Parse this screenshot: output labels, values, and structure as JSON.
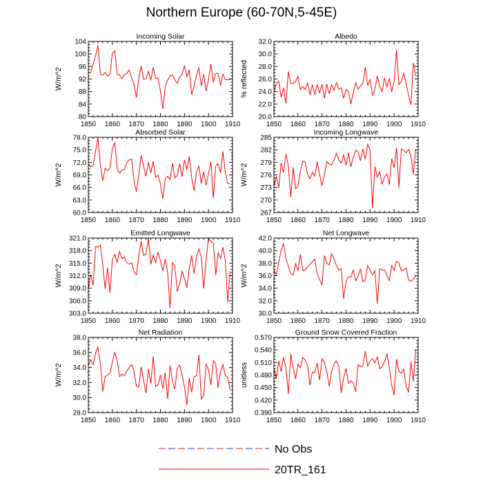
{
  "title": "Northern Europe (60-70N,5-45E)",
  "legend": [
    {
      "label": "No Obs",
      "style": "dashed",
      "colors": [
        "#d22",
        "#33c"
      ]
    },
    {
      "label": "20TR_161",
      "style": "solid",
      "colors": [
        "#e00"
      ]
    }
  ],
  "line_color": "#ff0000",
  "chart_data": [
    {
      "type": "line",
      "title": "Incoming Solar",
      "ylabel": "W/m^2",
      "xlim": [
        1850,
        1910
      ],
      "xticks": [
        1850,
        1860,
        1870,
        1880,
        1890,
        1900,
        1910
      ],
      "ylim": [
        80,
        104
      ],
      "yticks": [
        "80",
        "84",
        "88",
        "92",
        "96",
        "100",
        "104"
      ],
      "x0": 1850,
      "values": [
        94.0,
        94.0,
        96.8,
        99.2,
        102.8,
        93.5,
        93.2,
        94.1,
        92.9,
        93.6,
        100.1,
        101.0,
        93.5,
        93.3,
        92.1,
        93.4,
        93.8,
        94.9,
        92.4,
        90.4,
        86.1,
        92.3,
        96.1,
        91.9,
        92.1,
        94.4,
        91.6,
        95.7,
        92.2,
        92.3,
        88.2,
        82.4,
        89.6,
        91.7,
        92.9,
        93.4,
        91.7,
        90.6,
        92.6,
        93.5,
        96.3,
        92.7,
        94.9,
        87.0,
        89.6,
        93.2,
        95.6,
        89.8,
        93.5,
        88.1,
        91.7,
        96.8,
        90.9,
        93.8,
        93.8,
        89.9,
        93.6,
        91.8,
        91.8,
        91.8
      ]
    },
    {
      "type": "line",
      "title": "Albedo",
      "ylabel": "% reflected",
      "xlim": [
        1850,
        1910
      ],
      "xticks": [
        1850,
        1860,
        1870,
        1880,
        1890,
        1900,
        1910
      ],
      "ylim": [
        20,
        32
      ],
      "yticks": [
        "20.0",
        "22.0",
        "24.0",
        "26.0",
        "28.0",
        "30.0",
        "32.0"
      ],
      "x0": 1850,
      "values": [
        24.0,
        25.2,
        25.7,
        23.1,
        24.6,
        22.1,
        27.2,
        25.3,
        25.3,
        25.6,
        26.4,
        24.3,
        24.8,
        24.3,
        25.4,
        23.5,
        25.1,
        23.5,
        25.1,
        23.8,
        25.2,
        22.9,
        25.2,
        23.6,
        25.1,
        24.2,
        25.4,
        24.4,
        24.6,
        22.9,
        24.3,
        24.0,
        22.0,
        23.8,
        25.4,
        24.4,
        24.9,
        25.3,
        27.9,
        24.9,
        25.9,
        23.4,
        24.4,
        26.5,
        24.9,
        24.0,
        26.2,
        24.7,
        26.1,
        23.9,
        25.7,
        30.6,
        25.1,
        25.6,
        26.9,
        25.3,
        23.4,
        21.9,
        28.6,
        26.5
      ]
    },
    {
      "type": "line",
      "title": "Absorbed Solar",
      "ylabel": "W/m^2",
      "xlim": [
        1850,
        1910
      ],
      "xticks": [
        1850,
        1860,
        1870,
        1880,
        1890,
        1900,
        1910
      ],
      "ylim": [
        60,
        78
      ],
      "yticks": [
        "60.0",
        "63.0",
        "66.0",
        "69.0",
        "72.0",
        "75.0",
        "78.0"
      ],
      "x0": 1850,
      "values": [
        71.6,
        70.9,
        71.3,
        74.7,
        77.8,
        71.3,
        67.6,
        70.6,
        70.0,
        70.6,
        75.3,
        76.8,
        70.5,
        69.4,
        70.2,
        70.3,
        71.9,
        72.6,
        72.8,
        67.7,
        64.9,
        69.0,
        73.7,
        71.0,
        68.7,
        72.1,
        69.5,
        72.3,
        68.4,
        69.0,
        66.9,
        63.3,
        68.0,
        68.7,
        67.9,
        71.8,
        68.3,
        68.9,
        71.7,
        68.6,
        72.6,
        70.3,
        73.4,
        68.3,
        65.2,
        69.6,
        71.2,
        67.0,
        69.8,
        66.5,
        69.3,
        72.2,
        63.5,
        71.1,
        71.7,
        69.5,
        74.6,
        69.7,
        67.0,
        66.9
      ]
    },
    {
      "type": "line",
      "title": "Incoming Longwave",
      "ylabel": "W/m^2",
      "xlim": [
        1850,
        1910
      ],
      "xticks": [
        1850,
        1860,
        1870,
        1880,
        1890,
        1900,
        1910
      ],
      "ylim": [
        267,
        285
      ],
      "yticks": [
        "267",
        "270",
        "273",
        "276",
        "279",
        "282",
        "285"
      ],
      "x0": 1850,
      "values": [
        273.2,
        275.7,
        272.9,
        278.9,
        276.6,
        281.0,
        278.1,
        270.7,
        277.8,
        272.7,
        273.2,
        276.9,
        279.3,
        279.1,
        276.1,
        275.1,
        276.6,
        275.7,
        279.2,
        276.1,
        273.4,
        275.9,
        279.2,
        278.6,
        278.4,
        279.6,
        281.2,
        279.6,
        278.8,
        280.8,
        278.3,
        281.3,
        278.0,
        280.1,
        281.9,
        281.5,
        279.4,
        282.2,
        279.8,
        283.3,
        282.0,
        268.0,
        278.0,
        275.5,
        276.8,
        273.7,
        275.5,
        276.2,
        273.7,
        279.9,
        277.7,
        282.5,
        273.0,
        282.2,
        281.9,
        281.3,
        282.1,
        280.6,
        276.2,
        282.1
      ]
    },
    {
      "type": "line",
      "title": "Emitted Longwave",
      "ylabel": "W/m^2",
      "xlim": [
        1850,
        1910
      ],
      "xticks": [
        1850,
        1860,
        1870,
        1880,
        1890,
        1900,
        1910
      ],
      "ylim": [
        303,
        321
      ],
      "yticks": [
        "303.0",
        "306.0",
        "309.0",
        "312.0",
        "315.0",
        "318.0",
        "321.0"
      ],
      "x0": 1850,
      "values": [
        308.8,
        312.3,
        309.6,
        319.0,
        318.8,
        319.3,
        314.7,
        308.8,
        313.9,
        307.9,
        315.8,
        317.1,
        315.2,
        317.8,
        316.1,
        316.5,
        315.1,
        314.7,
        315.1,
        313.0,
        312.2,
        316.8,
        320.3,
        316.8,
        317.2,
        321.0,
        314.7,
        316.9,
        315.1,
        317.6,
        315.6,
        313.2,
        316.0,
        312.8,
        304.2,
        315.1,
        314.4,
        308.2,
        310.1,
        313.1,
        311.4,
        309.1,
        313.8,
        316.8,
        312.5,
        316.5,
        318.4,
        316.5,
        308.9,
        315.7,
        321.0,
        320.2,
        319.8,
        312.1,
        317.4,
        316.1,
        318.8,
        315.6,
        305.6,
        313.0
      ]
    },
    {
      "type": "line",
      "title": "Net Longwave",
      "ylabel": "W/m^2",
      "xlim": [
        1850,
        1910
      ],
      "xticks": [
        1850,
        1860,
        1870,
        1880,
        1890,
        1900,
        1910
      ],
      "ylim": [
        30,
        42
      ],
      "yticks": [
        "30.0",
        "32.0",
        "34.0",
        "36.0",
        "38.0",
        "40.0",
        "42.0"
      ],
      "x0": 1850,
      "values": [
        36.9,
        36.1,
        38.1,
        40.1,
        41.1,
        38.7,
        37.5,
        36.3,
        36.1,
        37.9,
        36.8,
        39.4,
        36.8,
        36.9,
        37.4,
        37.8,
        38.2,
        38.7,
        36.3,
        35.4,
        34.5,
        39.2,
        38.0,
        37.7,
        39.5,
        38.6,
        37.6,
        36.9,
        37.1,
        32.3,
        35.1,
        35.8,
        35.8,
        36.9,
        35.2,
        35.9,
        37.1,
        35.0,
        35.3,
        37.6,
        36.9,
        36.1,
        36.8,
        31.5,
        37.1,
        36.9,
        36.9,
        36.1,
        35.2,
        37.6,
        36.8,
        38.3,
        38.0,
        36.8,
        36.9,
        37.2,
        35.3,
        35.1,
        35.4,
        36.0
      ]
    },
    {
      "type": "line",
      "title": "Net Radiation",
      "ylabel": "W/m^2",
      "xlim": [
        1850,
        1910
      ],
      "xticks": [
        1850,
        1860,
        1870,
        1880,
        1890,
        1900,
        1910
      ],
      "ylim": [
        28,
        38
      ],
      "yticks": [
        "28.0",
        "30.0",
        "32.0",
        "34.0",
        "36.0",
        "38.0"
      ],
      "x0": 1850,
      "values": [
        34.3,
        35.0,
        34.4,
        35.9,
        36.7,
        34.6,
        30.8,
        32.8,
        33.0,
        33.3,
        34.7,
        36.0,
        34.9,
        32.8,
        33.1,
        32.9,
        33.5,
        34.0,
        34.4,
        33.6,
        31.5,
        31.4,
        34.1,
        32.3,
        30.6,
        33.8,
        31.9,
        35.5,
        31.5,
        31.7,
        33.0,
        31.2,
        33.3,
        29.8,
        34.3,
        32.2,
        31.1,
        33.9,
        34.3,
        33.0,
        31.4,
        29.0,
        32.6,
        30.7,
        32.8,
        32.9,
        35.7,
        29.8,
        30.3,
        34.5,
        33.7,
        31.7,
        34.9,
        34.5,
        31.3,
        33.5,
        34.4,
        32.9,
        32.7,
        31.0
      ]
    },
    {
      "type": "line",
      "title": "Ground Snow Covered Fraction",
      "ylabel": "unitless",
      "xlim": [
        1850,
        1910
      ],
      "xticks": [
        1850,
        1860,
        1870,
        1880,
        1890,
        1900,
        1910
      ],
      "ylim": [
        0.39,
        0.57
      ],
      "yticks": [
        "0.390",
        "0.420",
        "0.450",
        "0.480",
        "0.510",
        "0.540",
        "0.570"
      ],
      "x0": 1850,
      "values": [
        0.497,
        0.471,
        0.514,
        0.488,
        0.523,
        0.497,
        0.435,
        0.531,
        0.498,
        0.471,
        0.506,
        0.497,
        0.522,
        0.516,
        0.502,
        0.455,
        0.487,
        0.486,
        0.509,
        0.468,
        0.519,
        0.51,
        0.487,
        0.453,
        0.488,
        0.507,
        0.514,
        0.501,
        0.438,
        0.472,
        0.496,
        0.46,
        0.466,
        0.461,
        0.44,
        0.505,
        0.5,
        0.502,
        0.537,
        0.501,
        0.514,
        0.519,
        0.509,
        0.523,
        0.495,
        0.5,
        0.512,
        0.531,
        0.499,
        0.455,
        0.432,
        0.518,
        0.489,
        0.484,
        0.494,
        0.454,
        0.439,
        0.512,
        0.465,
        0.54
      ]
    }
  ]
}
